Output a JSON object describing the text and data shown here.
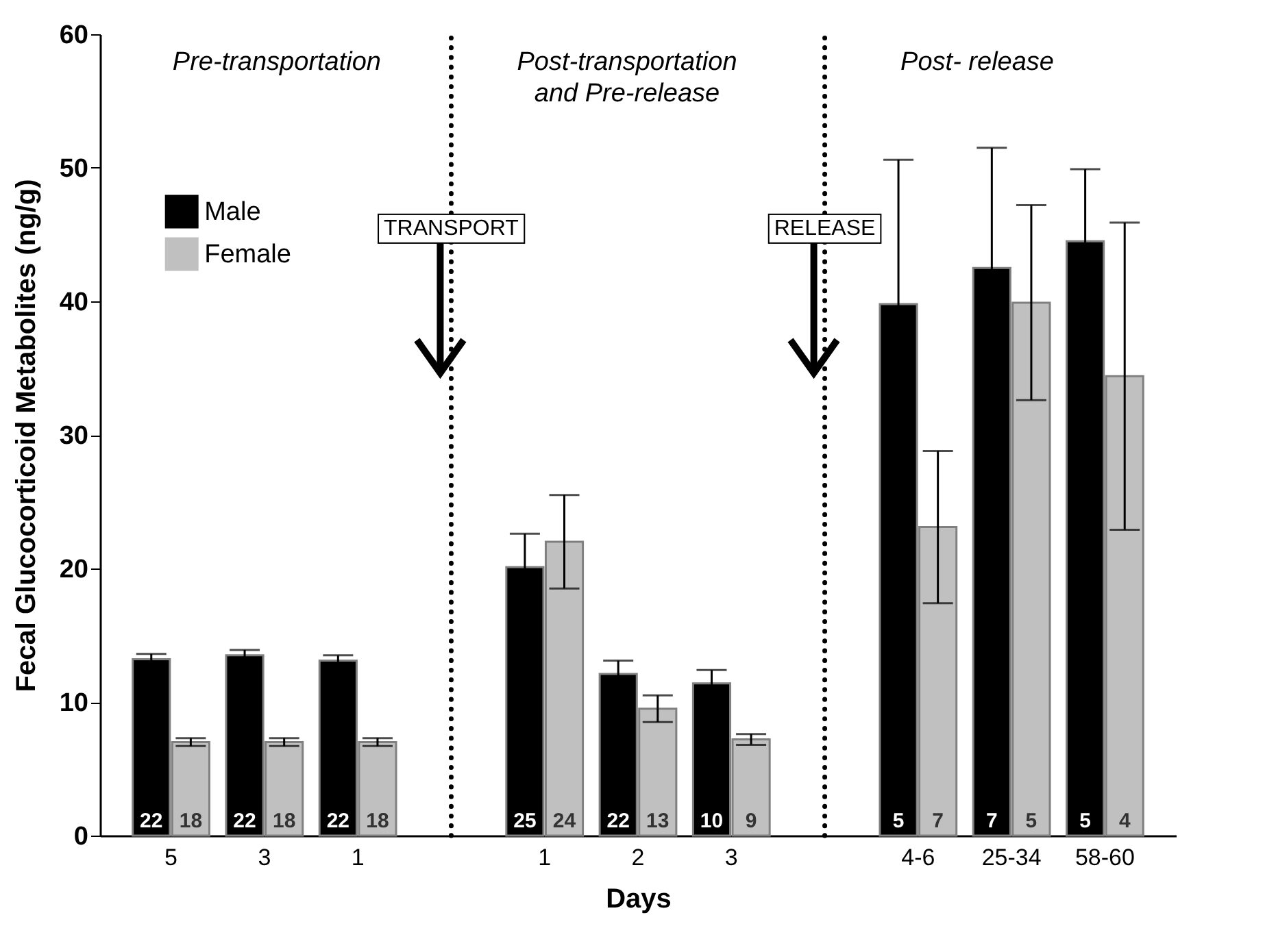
{
  "chart_data": {
    "type": "bar",
    "xlabel": "Days",
    "ylabel": "Fecal Glucocorticoid Metabolites (ng/g)",
    "categories": [
      "5",
      "3",
      "1",
      null,
      "1",
      "2",
      "3",
      null,
      "4-6",
      "25-34",
      "58-60"
    ],
    "series": [
      {
        "name": "Male",
        "color": "#000000",
        "values": [
          13.2,
          13.5,
          13.1,
          null,
          20.1,
          12.1,
          11.4,
          null,
          39.8,
          42.5,
          44.5
        ],
        "errors": [
          0.4,
          0.4,
          0.4,
          null,
          2.5,
          1.0,
          1.0,
          null,
          10.8,
          9.0,
          5.4
        ]
      },
      {
        "name": "Female",
        "color": "#c0c0c0",
        "values": [
          7.0,
          7.0,
          7.0,
          null,
          22.0,
          9.5,
          7.2,
          null,
          23.1,
          39.9,
          34.4
        ],
        "errors": [
          0.3,
          0.3,
          0.3,
          null,
          3.5,
          1.0,
          0.4,
          null,
          5.7,
          7.3,
          11.5
        ]
      }
    ],
    "ylim": [
      0,
      60
    ],
    "yticks": [
      0,
      10,
      20,
      30,
      40,
      50,
      60
    ],
    "legend": "top left",
    "annotations": [
      "Pre-transportation",
      "TRANSPORT",
      "Post-transportation\nand Pre-release",
      "RELEASE",
      "Post- release",
      "22",
      "18",
      "22",
      "18",
      "22",
      "18",
      "25",
      "24",
      "22",
      "13",
      "10",
      "9",
      "5",
      "7",
      "7",
      "5",
      "5",
      "4"
    ]
  }
}
